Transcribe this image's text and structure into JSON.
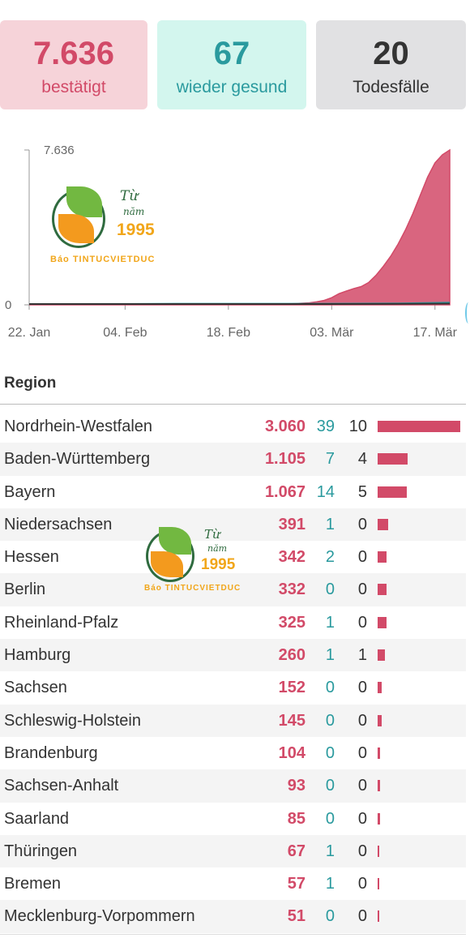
{
  "summary": {
    "confirmed_value": "7.636",
    "confirmed_label": "bestätigt",
    "recovered_value": "67",
    "recovered_label": "wieder gesund",
    "deaths_value": "20",
    "deaths_label": "Todesfälle"
  },
  "watermark": {
    "script_line1": "Từ",
    "script_line2": "năm",
    "year": "1995",
    "caption": "Báo TINTUCVIETDUC"
  },
  "chart_data": {
    "type": "area",
    "x_ticks": [
      "22. Jan",
      "04. Feb",
      "18. Feb",
      "03. Mär",
      "17. Mär"
    ],
    "y_ticks": [
      "0",
      "7.636"
    ],
    "ylim": [
      0,
      7636
    ],
    "x_days_total": 57,
    "series": [
      {
        "color": "#d24a68",
        "x": [
          0,
          14,
          20,
          30,
          33,
          36,
          38,
          39,
          40,
          41,
          42,
          43,
          44,
          45,
          46,
          47,
          48,
          49,
          50,
          51,
          52,
          53,
          54,
          55,
          56,
          57
        ],
        "values": [
          0,
          10,
          16,
          16,
          18,
          60,
          100,
          150,
          220,
          350,
          550,
          680,
          800,
          900,
          1100,
          1450,
          1900,
          2400,
          3000,
          3700,
          4500,
          5400,
          6300,
          7000,
          7400,
          7636
        ]
      },
      {
        "color": "#2a9a9e",
        "x": [
          0,
          14,
          20,
          30,
          40,
          50,
          57
        ],
        "values": [
          0,
          5,
          14,
          16,
          16,
          30,
          67
        ]
      },
      {
        "color": "#333333",
        "x": [
          0,
          40,
          48,
          57
        ],
        "values": [
          0,
          0,
          3,
          20
        ]
      }
    ]
  },
  "table": {
    "header": "Region",
    "rows": [
      {
        "region": "Nordrhein-Westfalen",
        "confirmed": "3.060",
        "recovered": "39",
        "deaths": "10",
        "bar": 3060
      },
      {
        "region": "Baden-Württemberg",
        "confirmed": "1.105",
        "recovered": "7",
        "deaths": "4",
        "bar": 1105
      },
      {
        "region": "Bayern",
        "confirmed": "1.067",
        "recovered": "14",
        "deaths": "5",
        "bar": 1067
      },
      {
        "region": "Niedersachsen",
        "confirmed": "391",
        "recovered": "1",
        "deaths": "0",
        "bar": 391
      },
      {
        "region": "Hessen",
        "confirmed": "342",
        "recovered": "2",
        "deaths": "0",
        "bar": 342
      },
      {
        "region": "Berlin",
        "confirmed": "332",
        "recovered": "0",
        "deaths": "0",
        "bar": 332
      },
      {
        "region": "Rheinland-Pfalz",
        "confirmed": "325",
        "recovered": "1",
        "deaths": "0",
        "bar": 325
      },
      {
        "region": "Hamburg",
        "confirmed": "260",
        "recovered": "1",
        "deaths": "1",
        "bar": 260
      },
      {
        "region": "Sachsen",
        "confirmed": "152",
        "recovered": "0",
        "deaths": "0",
        "bar": 152
      },
      {
        "region": "Schleswig-Holstein",
        "confirmed": "145",
        "recovered": "0",
        "deaths": "0",
        "bar": 145
      },
      {
        "region": "Brandenburg",
        "confirmed": "104",
        "recovered": "0",
        "deaths": "0",
        "bar": 104
      },
      {
        "region": "Sachsen-Anhalt",
        "confirmed": "93",
        "recovered": "0",
        "deaths": "0",
        "bar": 93
      },
      {
        "region": "Saarland",
        "confirmed": "85",
        "recovered": "0",
        "deaths": "0",
        "bar": 85
      },
      {
        "region": "Thüringen",
        "confirmed": "67",
        "recovered": "1",
        "deaths": "0",
        "bar": 67
      },
      {
        "region": "Bremen",
        "confirmed": "57",
        "recovered": "1",
        "deaths": "0",
        "bar": 57
      },
      {
        "region": "Mecklenburg-Vorpommern",
        "confirmed": "51",
        "recovered": "0",
        "deaths": "0",
        "bar": 51
      }
    ]
  }
}
